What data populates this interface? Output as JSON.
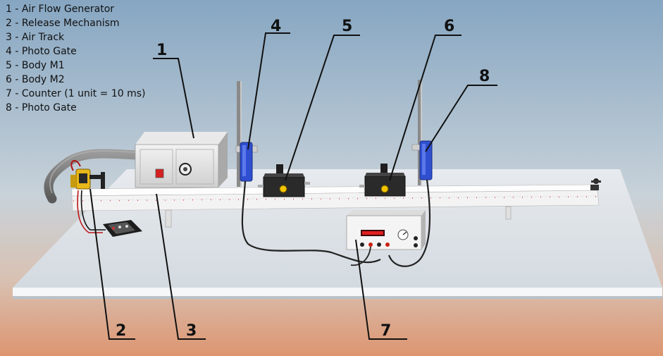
{
  "legend": [
    "1 - Air Flow Generator",
    "2 - Release Mechanism",
    "3 - Air Track",
    "4 - Photo Gate",
    "5 - Body M1",
    "6 - Body M2",
    "7 - Counter (1 unit = 10 ms)",
    "8 - Photo Gate"
  ],
  "callouts": [
    {
      "number": "1",
      "component": "air-flow-generator"
    },
    {
      "number": "2",
      "component": "release-mechanism"
    },
    {
      "number": "3",
      "component": "air-track"
    },
    {
      "number": "4",
      "component": "photo-gate"
    },
    {
      "number": "5",
      "component": "body-m1"
    },
    {
      "number": "6",
      "component": "body-m2"
    },
    {
      "number": "7",
      "component": "counter"
    },
    {
      "number": "8",
      "component": "photo-gate"
    }
  ],
  "colors": {
    "sky_top": "#8aa9c4",
    "sky_bottom": "#c9d3da",
    "floor": "#d9906c",
    "table": "#eef1f4",
    "track": "#f7f7f7",
    "photo_gate": "#2f4fd0",
    "rider": "#2b2b2b",
    "counter_display": "#d21818"
  }
}
